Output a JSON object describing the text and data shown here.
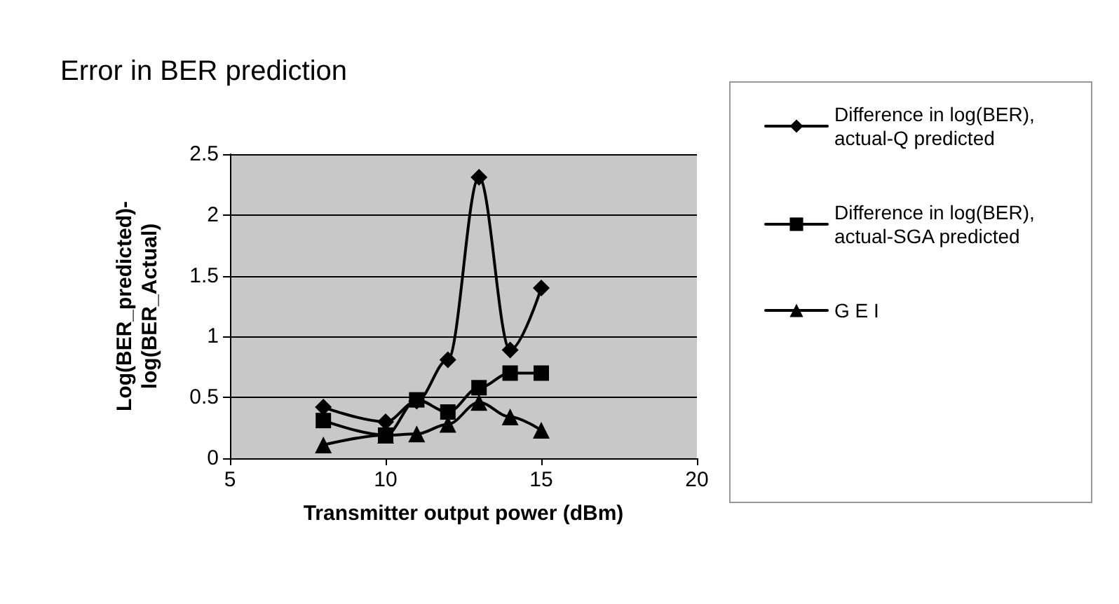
{
  "chart_data": {
    "type": "line",
    "title": "Error in BER prediction",
    "xlabel": "Transmitter output power (dBm)",
    "ylabel": "Log(BER_predicted)-log(BER_Actual)",
    "xlim": [
      5,
      20
    ],
    "xticks": [
      5,
      10,
      15,
      20
    ],
    "ylim": [
      0,
      2.5
    ],
    "yticks": [
      0,
      0.5,
      1,
      1.5,
      2,
      2.5
    ],
    "grid": "y",
    "legend": "right",
    "line_style": "solid",
    "series": [
      {
        "name": "Difference in log(BER), actual-Q predicted",
        "color": "#000000",
        "marker": "diamond",
        "x": [
          8,
          10,
          11,
          12,
          13,
          14,
          15
        ],
        "values": [
          0.42,
          0.3,
          0.47,
          0.81,
          2.31,
          0.89,
          1.4
        ]
      },
      {
        "name": "Difference in log(BER), actual-SGA predicted",
        "color": "#000000",
        "marker": "square",
        "x": [
          8,
          10,
          11,
          12,
          13,
          14,
          15
        ],
        "values": [
          0.31,
          0.19,
          0.48,
          0.38,
          0.58,
          0.7,
          0.7
        ]
      },
      {
        "name": "G E I",
        "color": "#000000",
        "marker": "triangle",
        "x": [
          8,
          10,
          11,
          12,
          13,
          14,
          15
        ],
        "values": [
          0.11,
          0.19,
          0.2,
          0.28,
          0.46,
          0.34,
          0.23
        ]
      }
    ]
  }
}
